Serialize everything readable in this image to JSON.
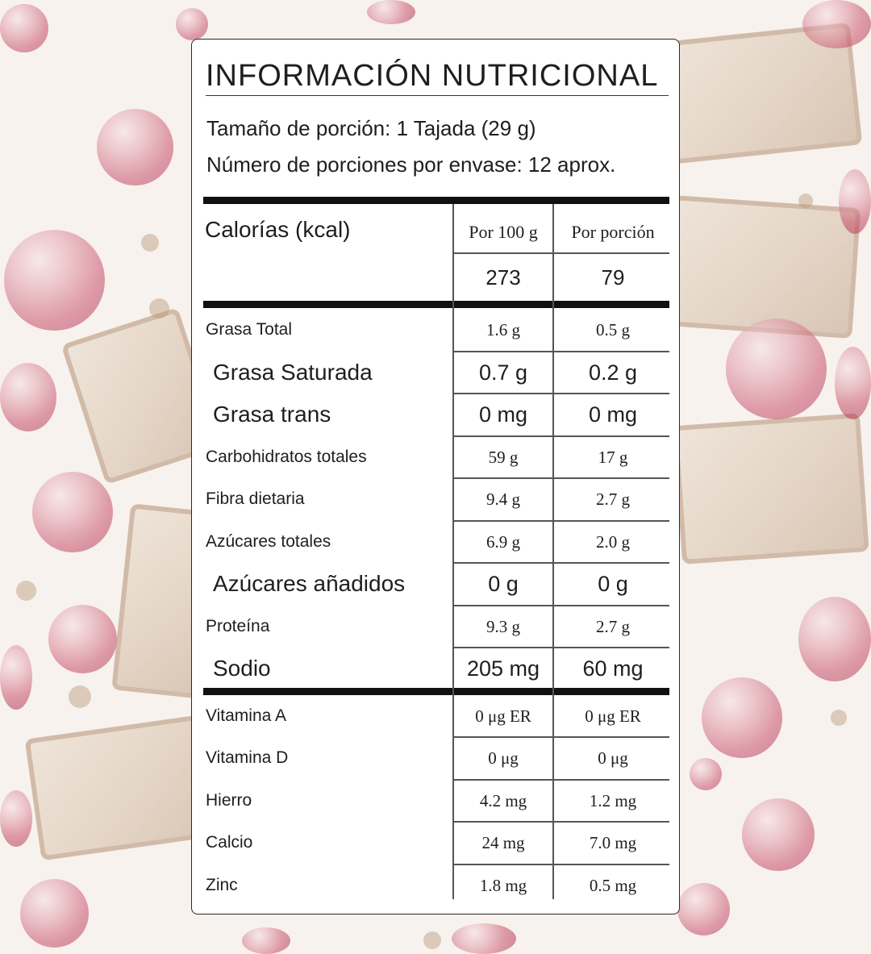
{
  "label": {
    "title": "INFORMACIÓN NUTRICIONAL",
    "serving_size": "Tamaño de porción: 1 Tajada (29 g)",
    "servings_per_container": "Número de porciones por envase: 12 aprox.",
    "calories_label": "Calorías (kcal)",
    "col_per_100g": "Por 100 g",
    "col_per_serving": "Por porción",
    "calories_per_100g": "273",
    "calories_per_serving": "79",
    "nutrients": [
      {
        "name": "Grasa Total",
        "per_100g": "1.6 g",
        "per_serving": "0.5 g",
        "bold": false
      },
      {
        "name": "Grasa Saturada",
        "per_100g": "0.7 g",
        "per_serving": "0.2 g",
        "bold": true
      },
      {
        "name": "Grasa trans",
        "per_100g": "0 mg",
        "per_serving": "0 mg",
        "bold": true
      },
      {
        "name": "Carbohidratos totales",
        "per_100g": "59 g",
        "per_serving": "17 g",
        "bold": false
      },
      {
        "name": "Fibra dietaria",
        "per_100g": "9.4 g",
        "per_serving": "2.7 g",
        "bold": false
      },
      {
        "name": "Azúcares totales",
        "per_100g": "6.9 g",
        "per_serving": "2.0 g",
        "bold": false
      },
      {
        "name": "Azúcares añadidos",
        "per_100g": "0 g",
        "per_serving": "0 g",
        "bold": true
      },
      {
        "name": "Proteína",
        "per_100g": "9.3 g",
        "per_serving": "2.7 g",
        "bold": false
      },
      {
        "name": "Sodio",
        "per_100g": "205 mg",
        "per_serving": "60 mg",
        "bold": true
      }
    ],
    "micronutrients": [
      {
        "name": "Vitamina A",
        "per_100g": "0 μg ER",
        "per_serving": "0 μg ER"
      },
      {
        "name": "Vitamina D",
        "per_100g": "0 μg",
        "per_serving": "0 μg"
      },
      {
        "name": "Hierro",
        "per_100g": "4.2 mg",
        "per_serving": "1.2 mg"
      },
      {
        "name": "Calcio",
        "per_100g": "24 mg",
        "per_serving": "7.0 mg"
      },
      {
        "name": "Zinc",
        "per_100g": "1.8 mg",
        "per_serving": "0.5 mg"
      }
    ]
  }
}
